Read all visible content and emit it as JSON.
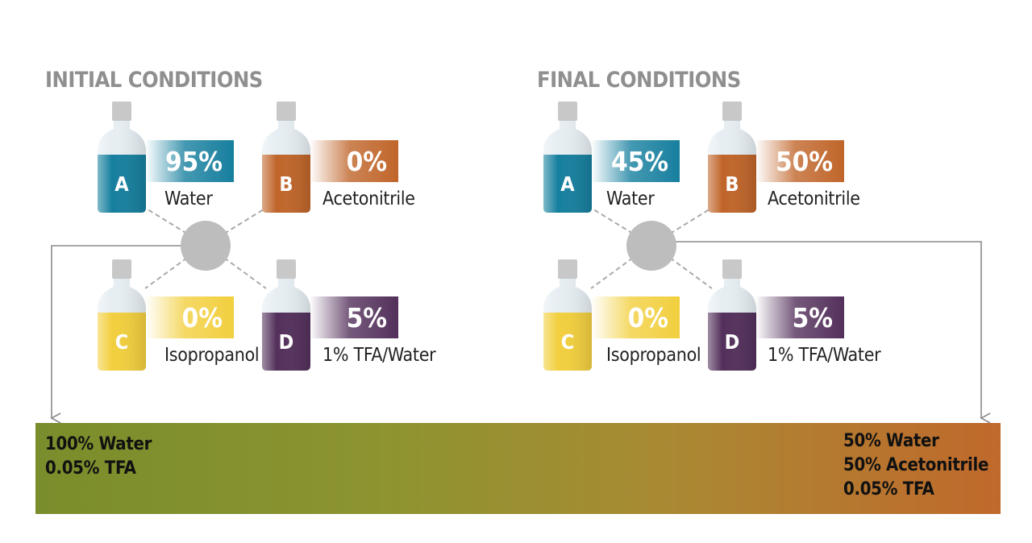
{
  "colors": {
    "a": "#167f9e",
    "b": "#c0652a",
    "c": "#f2cf3e",
    "d": "#53305b",
    "hub": "#bdbdbd",
    "title": "#8f8f8f"
  },
  "initial": {
    "title": "INITIAL CONDITIONS",
    "bottles": [
      {
        "letter": "A",
        "percent": "95%",
        "solvent": "Water"
      },
      {
        "letter": "B",
        "percent": "0%",
        "solvent": "Acetonitrile"
      },
      {
        "letter": "C",
        "percent": "0%",
        "solvent": "Isopropanol"
      },
      {
        "letter": "D",
        "percent": "5%",
        "solvent": "1% TFA/Water"
      }
    ]
  },
  "final": {
    "title": "FINAL CONDITIONS",
    "bottles": [
      {
        "letter": "A",
        "percent": "45%",
        "solvent": "Water"
      },
      {
        "letter": "B",
        "percent": "50%",
        "solvent": "Acetonitrile"
      },
      {
        "letter": "C",
        "percent": "0%",
        "solvent": "Isopropanol"
      },
      {
        "letter": "D",
        "percent": "5%",
        "solvent": "1% TFA/Water"
      }
    ]
  },
  "gradient": {
    "start_lines": [
      "100% Water",
      "0.05% TFA"
    ],
    "end_lines": [
      "50% Water",
      "50% Acetonitrile",
      "0.05% TFA"
    ]
  }
}
